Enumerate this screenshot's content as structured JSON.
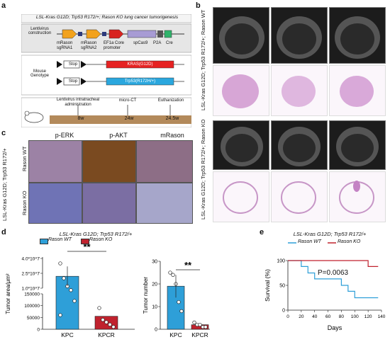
{
  "panels": {
    "a": {
      "letter": "a",
      "title": "LSL-Kras G12D; Trp53 R172/+; Rason KO lung cancer tumorigenesis",
      "lentivirus_label": "Lentivirus construction",
      "construct_parts": [
        "mRason sgRNA1",
        "mRason sgRNA2",
        "EF1a Core promoter",
        "spCas9",
        "P2A",
        "Cre"
      ],
      "mouse_genotype_label": "Mouse Genotype",
      "allele1": {
        "stop": "Stop",
        "gene": "KRAS(G12D)"
      },
      "allele2": {
        "stop": "Stop",
        "gene": "Trp53(R172H/+)"
      },
      "timeline_events": [
        "Lentivirus intratracheal administration",
        "micro-CT",
        "Euthanization"
      ],
      "timeline_times": [
        "8w",
        "24w",
        "24.5w"
      ]
    },
    "b": {
      "letter": "b",
      "label_wt": "LSL-Kras G12D; Trp53 R172/+; Rason WT",
      "label_ko": "LSL-Kras G12D; Trp53 R172/+; Rason KO"
    },
    "c": {
      "letter": "c",
      "columns": [
        "p-ERK",
        "p-AKT",
        "mRason"
      ],
      "rows": [
        "Rason WT",
        "Rason KO"
      ],
      "side_label": "LSL-Kras G12D; Trp53 R172/+"
    },
    "d": {
      "letter": "d",
      "genotype": "LSL-Kras G12D; Trp53 R172/+",
      "legend": [
        "Rason WT",
        "Rason KO"
      ],
      "colors": {
        "wt": "#2e9fd8",
        "ko": "#c0222e"
      },
      "sig": "**"
    },
    "e": {
      "letter": "e",
      "genotype": "LSL-Kras G12D; Trp53 R172/+",
      "legend": [
        "Rason WT",
        "Rason KO"
      ],
      "pvalue": "P=0.0063"
    }
  },
  "chart_data": [
    {
      "type": "bar",
      "ylabel": "Tumor area/μm²",
      "categories": [
        "KPC",
        "KPCR"
      ],
      "values": [
        22000000,
        55000
      ],
      "yticks": [
        "4.0*10^7",
        "2.5*10^7",
        "1.0*10^7",
        "150000",
        "100000",
        "50000",
        "0"
      ],
      "points_KPC": [
        35000000,
        20000000,
        12000000,
        8000000,
        120000,
        60000
      ],
      "points_KPCR": [
        90000,
        40000,
        30000,
        20000,
        10000
      ]
    },
    {
      "type": "bar",
      "ylabel": "Tumor number",
      "categories": [
        "KPC",
        "KPCR"
      ],
      "values": [
        19,
        2
      ],
      "ylim": [
        0,
        30
      ],
      "yticks": [
        "0",
        "10",
        "20",
        "30"
      ],
      "points_KPC": [
        25,
        24,
        20,
        12,
        8
      ],
      "points_KPCR": [
        3,
        2,
        2,
        1,
        1
      ]
    },
    {
      "type": "line",
      "xlabel": "Days",
      "ylabel": "Survival (%)",
      "xlim": [
        0,
        140
      ],
      "ylim": [
        0,
        100
      ],
      "xticks": [
        "0",
        "20",
        "40",
        "60",
        "80",
        "100",
        "120",
        "140"
      ],
      "yticks": [
        "0",
        "50",
        "100"
      ],
      "series": [
        {
          "name": "Rason WT",
          "x": [
            0,
            20,
            20,
            30,
            30,
            40,
            40,
            80,
            80,
            90,
            90,
            100,
            100,
            135
          ],
          "y": [
            100,
            100,
            88,
            88,
            75,
            75,
            63,
            63,
            50,
            50,
            38,
            38,
            25,
            25
          ]
        },
        {
          "name": "Rason KO",
          "x": [
            0,
            120,
            120,
            135
          ],
          "y": [
            100,
            100,
            88,
            88
          ]
        }
      ]
    }
  ]
}
